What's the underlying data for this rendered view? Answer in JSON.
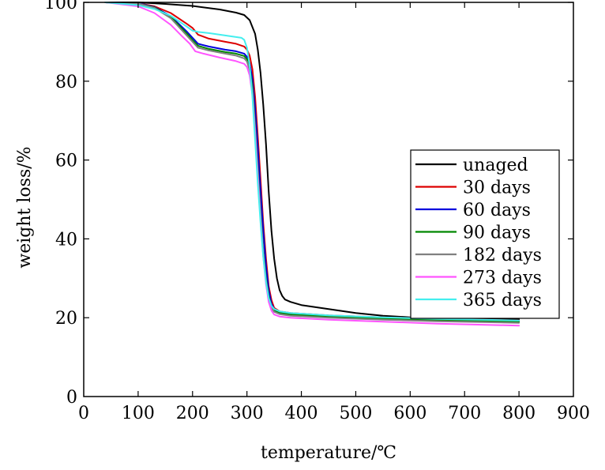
{
  "chart_data": {
    "type": "line",
    "title": "",
    "xlabel": "temperature/℃",
    "ylabel": "weight loss/%",
    "xlim": [
      0,
      900
    ],
    "ylim": [
      0,
      100
    ],
    "xticks": [
      "0",
      "100",
      "200",
      "300",
      "400",
      "500",
      "600",
      "700",
      "800",
      "900"
    ],
    "yticks": [
      "0",
      "20",
      "40",
      "60",
      "80",
      "100"
    ],
    "grid": false,
    "legend_position": "right",
    "series": [
      {
        "name": "unaged",
        "color": "#000000",
        "x": [
          40,
          100,
          150,
          200,
          250,
          280,
          295,
          305,
          315,
          320,
          325,
          330,
          335,
          340,
          345,
          350,
          355,
          360,
          365,
          370,
          380,
          400,
          450,
          500,
          550,
          600,
          700,
          800
        ],
        "y": [
          100,
          100,
          99.6,
          99.1,
          98.2,
          97.4,
          96.8,
          95.5,
          92,
          88,
          82,
          74,
          64,
          52,
          42,
          35,
          30,
          27,
          25.5,
          24.6,
          24,
          23.2,
          22.2,
          21.2,
          20.5,
          20.1,
          19.8,
          19.6
        ]
      },
      {
        "name": "30 days",
        "color": "#dd0000",
        "x": [
          40,
          100,
          130,
          160,
          190,
          200,
          210,
          230,
          260,
          280,
          295,
          300,
          305,
          310,
          315,
          320,
          325,
          330,
          335,
          340,
          345,
          350,
          360,
          380,
          450,
          550,
          650,
          800
        ],
        "y": [
          100,
          99.8,
          99,
          97.3,
          94.5,
          93.5,
          91.8,
          90.8,
          90,
          89.5,
          88.8,
          88,
          86.5,
          83,
          76,
          66,
          55,
          44,
          35,
          28,
          24.5,
          22.5,
          21.6,
          21.2,
          20.6,
          20.1,
          19.7,
          19.3
        ]
      },
      {
        "name": "60 days",
        "color": "#0000dd",
        "x": [
          40,
          100,
          130,
          160,
          190,
          200,
          210,
          230,
          260,
          280,
          295,
          300,
          305,
          310,
          315,
          320,
          325,
          330,
          335,
          340,
          345,
          350,
          360,
          380,
          450,
          550,
          650,
          800
        ],
        "y": [
          100,
          99.8,
          98.8,
          96.5,
          92.5,
          91,
          89.5,
          88.8,
          88,
          87.6,
          87,
          86.2,
          84.5,
          80.5,
          73,
          63,
          52,
          42,
          33,
          27,
          23.5,
          22.2,
          21.5,
          21.1,
          20.5,
          20,
          19.6,
          19.2
        ]
      },
      {
        "name": "90 days",
        "color": "#008800",
        "x": [
          40,
          100,
          130,
          160,
          190,
          200,
          210,
          230,
          260,
          280,
          295,
          300,
          305,
          310,
          315,
          320,
          325,
          330,
          335,
          340,
          345,
          350,
          360,
          380,
          450,
          550,
          650,
          800
        ],
        "y": [
          100,
          99.7,
          98.7,
          96.3,
          92,
          90.4,
          89,
          88.2,
          87.4,
          87,
          86.4,
          85.6,
          83.5,
          78.5,
          69,
          58,
          47,
          37,
          30,
          25.5,
          22.8,
          21.8,
          21.2,
          20.8,
          20.3,
          19.8,
          19.4,
          19
        ]
      },
      {
        "name": "182 days",
        "color": "#808080",
        "x": [
          40,
          100,
          130,
          160,
          190,
          200,
          210,
          230,
          260,
          280,
          295,
          300,
          305,
          310,
          315,
          320,
          325,
          330,
          335,
          340,
          345,
          350,
          360,
          380,
          450,
          550,
          650,
          800
        ],
        "y": [
          100,
          99.7,
          98.6,
          96,
          91.5,
          90,
          88.5,
          87.8,
          87,
          86.5,
          85.8,
          85,
          82.8,
          77.5,
          68,
          57,
          46,
          36.5,
          29.5,
          25,
          22.5,
          21.5,
          20.9,
          20.5,
          20,
          19.5,
          19.1,
          18.7
        ]
      },
      {
        "name": "273 days",
        "color": "#ff55ff",
        "x": [
          40,
          100,
          130,
          160,
          180,
          195,
          205,
          220,
          250,
          280,
          295,
          300,
          305,
          310,
          315,
          320,
          325,
          330,
          335,
          340,
          345,
          350,
          360,
          380,
          450,
          550,
          650,
          800
        ],
        "y": [
          100,
          99,
          97.3,
          94.3,
          91.5,
          89.5,
          87.6,
          87,
          86,
          85.1,
          84.4,
          83.6,
          81.5,
          76.5,
          67,
          56,
          45,
          35.5,
          28.5,
          24,
          21.8,
          20.8,
          20.3,
          20,
          19.5,
          19,
          18.5,
          18
        ]
      },
      {
        "name": "365 days",
        "color": "#44eeee",
        "x": [
          40,
          100,
          130,
          160,
          190,
          200,
          210,
          230,
          260,
          280,
          290,
          295,
          300,
          305,
          310,
          315,
          320,
          325,
          330,
          335,
          340,
          345,
          350,
          360,
          380,
          450,
          550,
          650,
          800
        ],
        "y": [
          100,
          99.3,
          98.3,
          96.6,
          93.8,
          92.8,
          92.5,
          92.2,
          91.6,
          91.2,
          91,
          90.5,
          88.5,
          84,
          76,
          65,
          54,
          44,
          35.5,
          29,
          25,
          23,
          22.2,
          21.6,
          21.2,
          20.6,
          20.1,
          19.7,
          19.3
        ]
      }
    ]
  }
}
